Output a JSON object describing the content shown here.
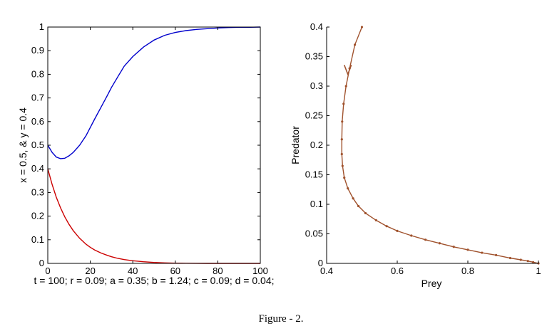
{
  "figure_caption": "Figure - 2.",
  "chart_data": [
    {
      "type": "line",
      "title": "",
      "xlabel": "t = 100; r = 0.09; a = 0.35; b = 1.24; c = 0.09; d = 0.04;",
      "ylabel": "x = 0.5, & y = 0.4",
      "xlim": [
        0,
        100
      ],
      "ylim": [
        0,
        1
      ],
      "xticks": [
        "0",
        "20",
        "40",
        "60",
        "80",
        "100"
      ],
      "yticks": [
        "0",
        "0.1",
        "0.2",
        "0.3",
        "0.4",
        "0.5",
        "0.6",
        "0.7",
        "0.8",
        "0.9",
        "1"
      ],
      "grid": false,
      "x": [
        0,
        2,
        4,
        6,
        8,
        10,
        12,
        15,
        18,
        20,
        22,
        25,
        28,
        30,
        33,
        36,
        40,
        45,
        50,
        55,
        60,
        65,
        70,
        75,
        80,
        85,
        90,
        95,
        100
      ],
      "series": [
        {
          "color": "#0000cc",
          "values": [
            0.5,
            0.47,
            0.45,
            0.443,
            0.445,
            0.455,
            0.47,
            0.5,
            0.54,
            0.575,
            0.61,
            0.66,
            0.71,
            0.745,
            0.79,
            0.835,
            0.875,
            0.915,
            0.945,
            0.965,
            0.977,
            0.985,
            0.99,
            0.993,
            0.996,
            0.998,
            0.999,
            0.999,
            1.0
          ]
        },
        {
          "color": "#cc0000",
          "values": [
            0.4,
            0.335,
            0.28,
            0.235,
            0.197,
            0.165,
            0.138,
            0.106,
            0.081,
            0.068,
            0.057,
            0.044,
            0.034,
            0.028,
            0.021,
            0.016,
            0.011,
            0.007,
            0.004,
            0.002,
            0.001,
            0.0006,
            0.0003,
            0.0001,
            0.0,
            0.0,
            0.0,
            0.0,
            0.0
          ]
        }
      ]
    },
    {
      "type": "line",
      "title": "",
      "xlabel": "Prey",
      "ylabel": "Predator",
      "xlim": [
        0.4,
        1
      ],
      "ylim": [
        0,
        0.4
      ],
      "xticks": [
        "0.4",
        "0.6",
        "0.8",
        "1"
      ],
      "yticks": [
        "0",
        "0.05",
        "0.1",
        "0.15",
        "0.2",
        "0.25",
        "0.3",
        "0.35",
        "0.4"
      ],
      "grid": false,
      "markers": true,
      "arrow": "on trajectory near (0.46, 0.33), pointing down",
      "series": [
        {
          "color": "#a0522d",
          "x": [
            0.5,
            0.48,
            0.465,
            0.455,
            0.448,
            0.444,
            0.443,
            0.443,
            0.445,
            0.45,
            0.46,
            0.475,
            0.49,
            0.51,
            0.54,
            0.57,
            0.6,
            0.64,
            0.68,
            0.72,
            0.76,
            0.8,
            0.84,
            0.88,
            0.92,
            0.95,
            0.97,
            0.985,
            1.0
          ],
          "y": [
            0.4,
            0.37,
            0.33,
            0.3,
            0.27,
            0.24,
            0.21,
            0.185,
            0.165,
            0.145,
            0.127,
            0.11,
            0.097,
            0.085,
            0.073,
            0.063,
            0.055,
            0.047,
            0.04,
            0.034,
            0.028,
            0.023,
            0.018,
            0.014,
            0.009,
            0.006,
            0.004,
            0.002,
            0.0
          ]
        }
      ]
    }
  ]
}
